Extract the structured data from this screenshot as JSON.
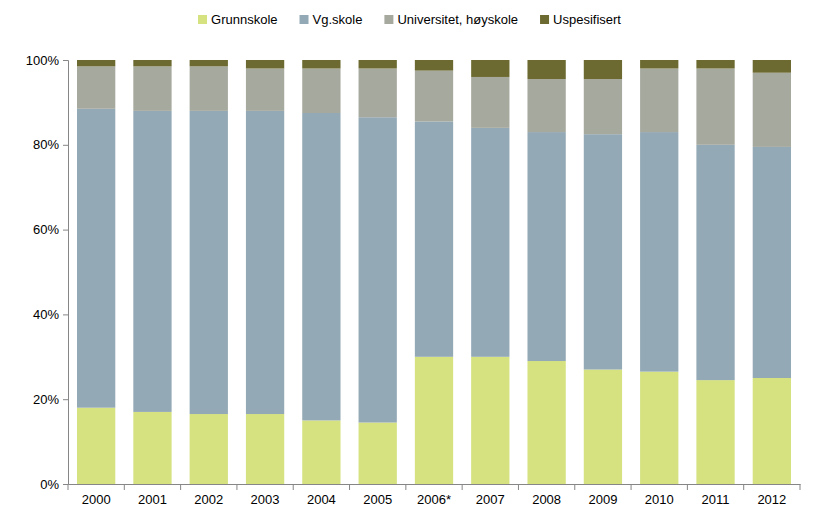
{
  "chart_data": {
    "type": "bar",
    "stacked": true,
    "legend": "top",
    "categories": [
      "2000",
      "2001",
      "2002",
      "2003",
      "2004",
      "2005",
      "2006*",
      "2007",
      "2008",
      "2009",
      "2010",
      "2011",
      "2012"
    ],
    "series": [
      {
        "name": "Grunnskole",
        "color": "#d5e27f",
        "values": [
          18,
          17,
          16.5,
          16.5,
          15,
          14.5,
          30,
          30,
          29,
          27,
          26.5,
          24.5,
          25
        ]
      },
      {
        "name": "Vg.skole",
        "color": "#93a9b5",
        "values": [
          70.5,
          71,
          71.5,
          71.5,
          72.5,
          72,
          55.5,
          54,
          54,
          55.5,
          56.5,
          55.5,
          54.5
        ]
      },
      {
        "name": "Universitet, høyskole",
        "color": "#a6a99e",
        "values": [
          10,
          10.5,
          10.5,
          10,
          10.5,
          11.5,
          12,
          12,
          12.5,
          13,
          15,
          18,
          17.5
        ]
      },
      {
        "name": "Uspesifisert",
        "color": "#6c6a30",
        "values": [
          1.5,
          1.5,
          1.5,
          2,
          2,
          2,
          2.5,
          4,
          4.5,
          4.5,
          2,
          2,
          3
        ]
      }
    ],
    "ylim": [
      0,
      100
    ],
    "yticks": [
      {
        "value": 0,
        "label": "0%"
      },
      {
        "value": 20,
        "label": "20%"
      },
      {
        "value": 40,
        "label": "40%"
      },
      {
        "value": 60,
        "label": "60%"
      },
      {
        "value": 80,
        "label": "80%"
      },
      {
        "value": 100,
        "label": "100%"
      }
    ],
    "grid": false
  }
}
